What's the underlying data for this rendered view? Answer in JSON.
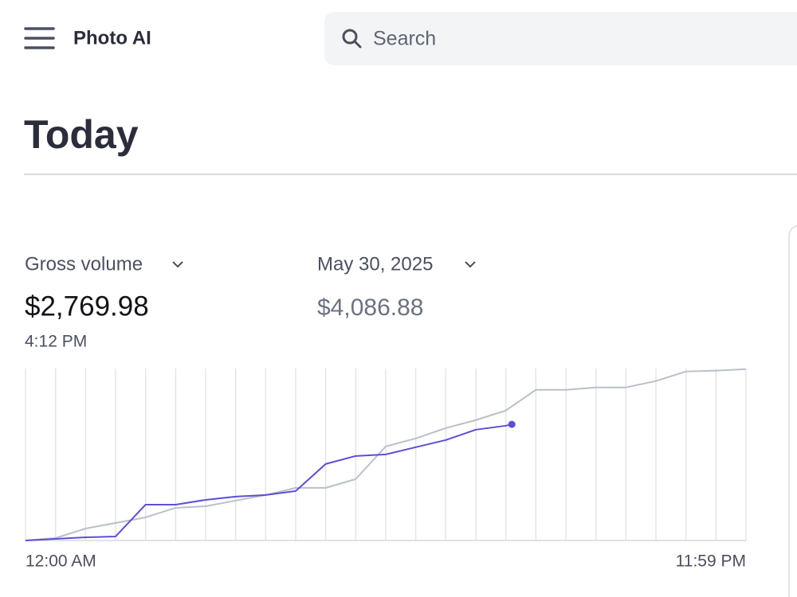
{
  "header": {
    "app_name": "Photo AI",
    "search_placeholder": "Search"
  },
  "page_title": "Today",
  "summary": {
    "metric": "Gross volume",
    "value": "$2,769.98",
    "time": "4:12 PM",
    "compare_date": "May 30, 2025",
    "compare_value": "$4,086.88"
  },
  "chart_data": {
    "type": "line",
    "xlim": [
      0,
      24
    ],
    "ylim": [
      0,
      4100
    ],
    "xticks": [
      {
        "value": 0,
        "label": "12:00 AM"
      },
      {
        "value": 1,
        "label": null
      },
      {
        "value": 2,
        "label": null
      },
      {
        "value": 3,
        "label": null
      },
      {
        "value": 4,
        "label": null
      },
      {
        "value": 5,
        "label": null
      },
      {
        "value": 6,
        "label": null
      },
      {
        "value": 7,
        "label": null
      },
      {
        "value": 8,
        "label": null
      },
      {
        "value": 9,
        "label": null
      },
      {
        "value": 10,
        "label": null
      },
      {
        "value": 11,
        "label": null
      },
      {
        "value": 12,
        "label": null
      },
      {
        "value": 13,
        "label": null
      },
      {
        "value": 14,
        "label": null
      },
      {
        "value": 15,
        "label": null
      },
      {
        "value": 16,
        "label": null
      },
      {
        "value": 17,
        "label": null
      },
      {
        "value": 18,
        "label": null
      },
      {
        "value": 19,
        "label": null
      },
      {
        "value": 20,
        "label": null
      },
      {
        "value": 21,
        "label": null
      },
      {
        "value": 22,
        "label": null
      },
      {
        "value": 23,
        "label": null
      },
      {
        "value": 24,
        "label": "11:59 PM"
      }
    ],
    "grid": true,
    "series": [
      {
        "color": "#b9c0ca",
        "x": [
          0,
          1,
          2,
          3,
          4,
          5,
          6,
          7,
          8,
          9,
          10,
          11,
          12,
          13,
          14,
          15,
          16,
          17,
          18,
          19,
          20,
          21,
          22,
          23,
          24
        ],
        "values": [
          0,
          57,
          285,
          418,
          551,
          779,
          817,
          950,
          1084,
          1255,
          1255,
          1464,
          2243,
          2433,
          2680,
          2871,
          3099,
          3593,
          3593,
          3650,
          3650,
          3802,
          4030,
          4049,
          4086.88
        ],
        "end_marker": false
      },
      {
        "color": "#5b4fd6",
        "x": [
          0,
          1,
          2,
          3,
          4,
          5,
          6,
          7,
          8,
          9,
          10,
          11,
          12,
          13,
          14,
          15,
          16,
          16.2
        ],
        "values": [
          0,
          38,
          76,
          95,
          855,
          855,
          969,
          1046,
          1084,
          1179,
          1825,
          2015,
          2053,
          2224,
          2395,
          2642,
          2737,
          2769.98
        ],
        "end_marker": true
      }
    ]
  }
}
